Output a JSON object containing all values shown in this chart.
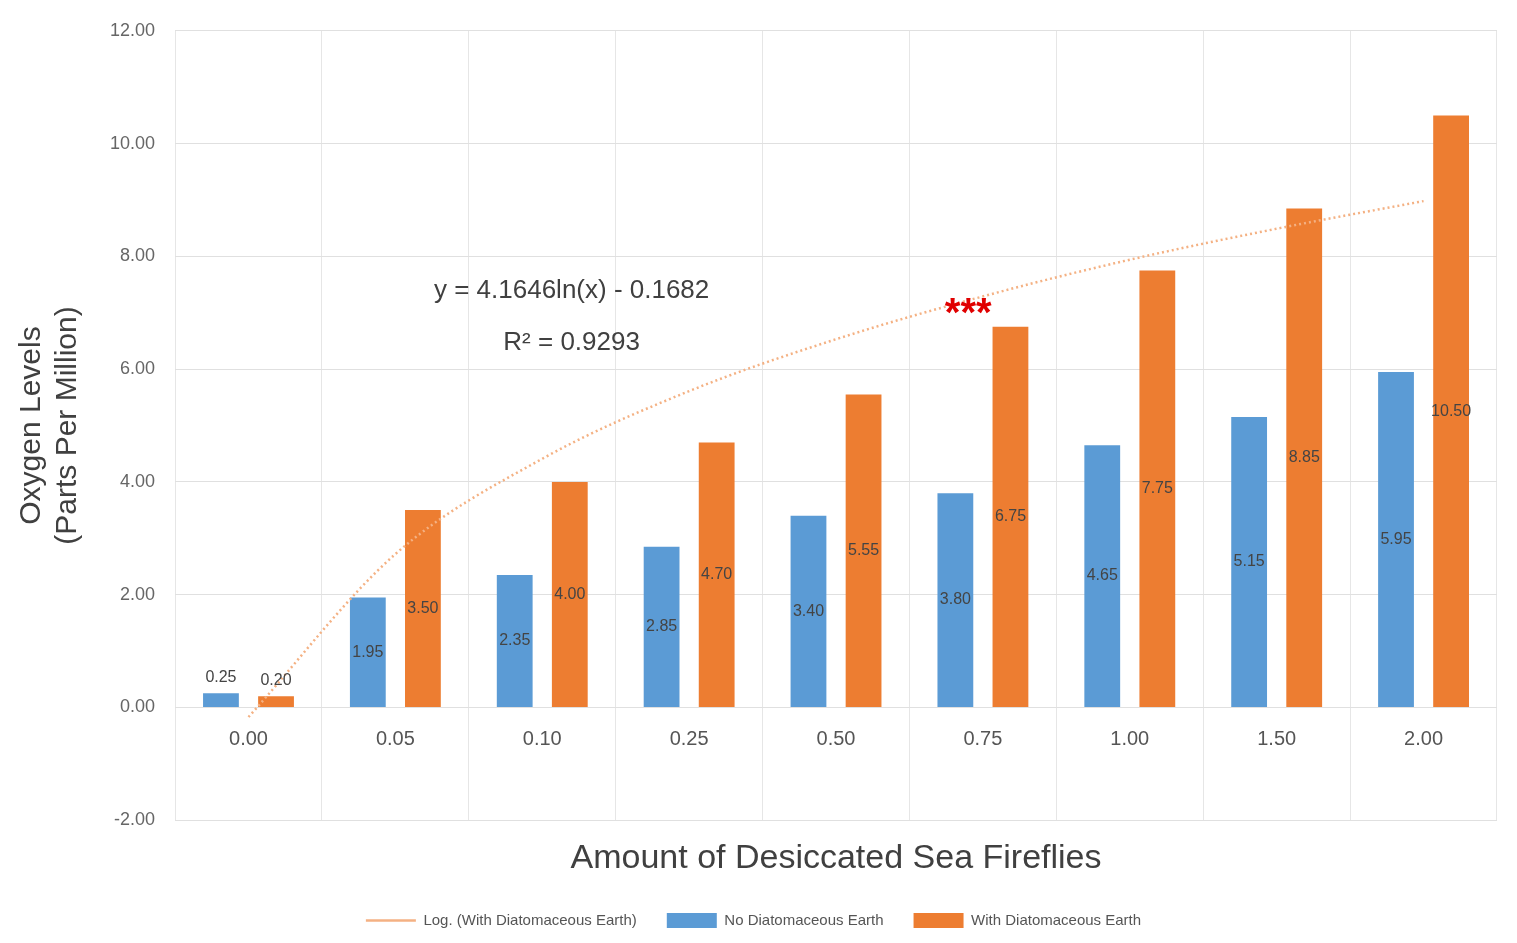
{
  "chart_data": {
    "type": "bar",
    "xlabel": "Amount of Desiccated Sea Fireflies",
    "ylabel": "Oxygen Levels\n(Parts Per Million)",
    "categories": [
      "0.00",
      "0.05",
      "0.10",
      "0.25",
      "0.50",
      "0.75",
      "1.00",
      "1.50",
      "2.00"
    ],
    "series": [
      {
        "name": "No Diatomaceous Earth",
        "color": "#5b9bd5",
        "values": [
          0.25,
          1.95,
          2.35,
          2.85,
          3.4,
          3.8,
          4.65,
          5.15,
          5.95
        ],
        "value_labels": [
          "0.25",
          "1.95",
          "2.35",
          "2.85",
          "3.40",
          "3.80",
          "4.65",
          "5.15",
          "5.95"
        ]
      },
      {
        "name": "With Diatomaceous Earth",
        "color": "#ed7d31",
        "values": [
          0.2,
          3.5,
          4.0,
          4.7,
          5.55,
          6.75,
          7.75,
          8.85,
          10.5
        ],
        "value_labels": [
          "0.20",
          "3.50",
          "4.00",
          "4.70",
          "5.55",
          "6.75",
          "7.75",
          "8.85",
          "10.50"
        ]
      },
      {
        "name": "Log. (With Diatomaceous Earth)",
        "type": "line",
        "color": "#f4b183",
        "line_style": "dotted",
        "marker": "none",
        "x": [
          "0.00",
          "0.05",
          "0.10",
          "0.25",
          "0.50",
          "0.75",
          "1.00",
          "1.50",
          "2.00"
        ],
        "values": [
          -0.17,
          2.72,
          4.41,
          5.61,
          6.53,
          7.29,
          7.94,
          8.49,
          8.98
        ]
      }
    ],
    "ylim": [
      -2,
      12
    ],
    "yticks": [
      {
        "value": -2,
        "label": "-2.00"
      },
      {
        "value": 0,
        "label": "0.00"
      },
      {
        "value": 2,
        "label": "2.00"
      },
      {
        "value": 4,
        "label": "4.00"
      },
      {
        "value": 6,
        "label": "6.00"
      },
      {
        "value": 8,
        "label": "8.00"
      },
      {
        "value": 10,
        "label": "10.00"
      },
      {
        "value": 12,
        "label": "12.00"
      }
    ],
    "annotations": [
      "y = 4.1646ln(x) - 0.1682",
      "R² = 0.9293",
      "***"
    ],
    "grid": true,
    "legend": "bottom"
  }
}
